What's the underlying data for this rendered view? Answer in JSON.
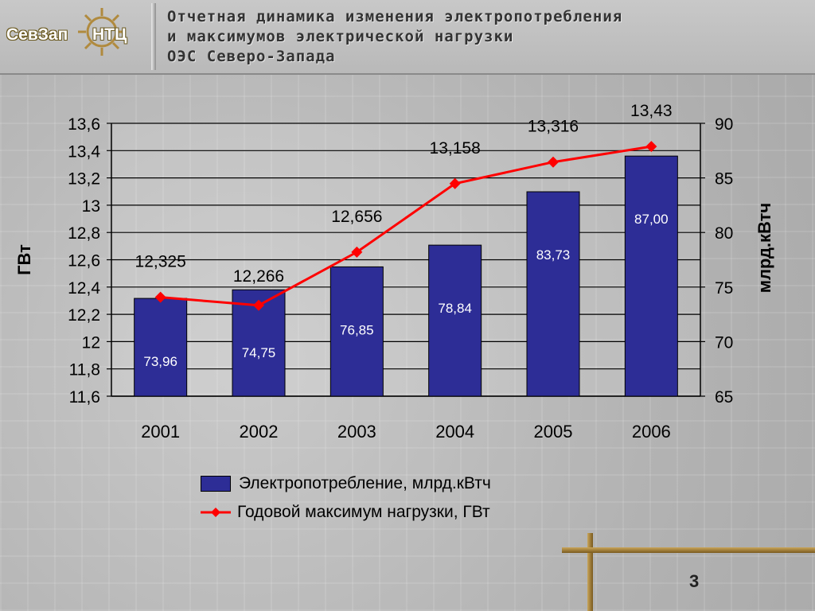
{
  "logo": {
    "left_text": "СевЗап",
    "right_text": "НТЦ"
  },
  "title": {
    "line1": "Отчетная динамика изменения электропотребления",
    "line2": "и максимумов электрической нагрузки",
    "line3": "ОЭС Северо-Запада"
  },
  "page_number": "3",
  "legend": {
    "bar_label": "Электропотребление, млрд.кВтч",
    "line_label": "Годовой максимум нагрузки, ГВт"
  },
  "colors": {
    "bar": "#2d2d96",
    "line": "#ff0000",
    "marker": "#ff0000",
    "accent": "#b08a3e"
  },
  "chart_data": {
    "type": "bar",
    "categories": [
      "2001",
      "2002",
      "2003",
      "2004",
      "2005",
      "2006"
    ],
    "series": [
      {
        "name": "Электропотребление, млрд.кВтч",
        "type": "bar",
        "axis": "right",
        "values": [
          73.96,
          74.75,
          76.85,
          78.84,
          83.73,
          87.0
        ],
        "labels": [
          "73,96",
          "74,75",
          "76,85",
          "78,84",
          "83,73",
          "87,00"
        ]
      },
      {
        "name": "Годовой максимум нагрузки, ГВт",
        "type": "line",
        "axis": "left",
        "values": [
          12.325,
          12.266,
          12.656,
          13.158,
          13.316,
          13.43
        ],
        "labels": [
          "12,325",
          "12,266",
          "12,656",
          "13,158",
          "13,316",
          "13,43"
        ]
      }
    ],
    "left_axis": {
      "label": "ГВт",
      "min": 11.6,
      "max": 13.6,
      "ticks": [
        "11,6",
        "11,8",
        "12",
        "12,2",
        "12,4",
        "12,6",
        "12,8",
        "13",
        "13,2",
        "13,4",
        "13,6"
      ]
    },
    "right_axis": {
      "label": "млрд.кВтч",
      "min": 65,
      "max": 90,
      "ticks": [
        "65",
        "70",
        "75",
        "80",
        "85",
        "90"
      ]
    },
    "grid": true,
    "legend_position": "bottom"
  }
}
